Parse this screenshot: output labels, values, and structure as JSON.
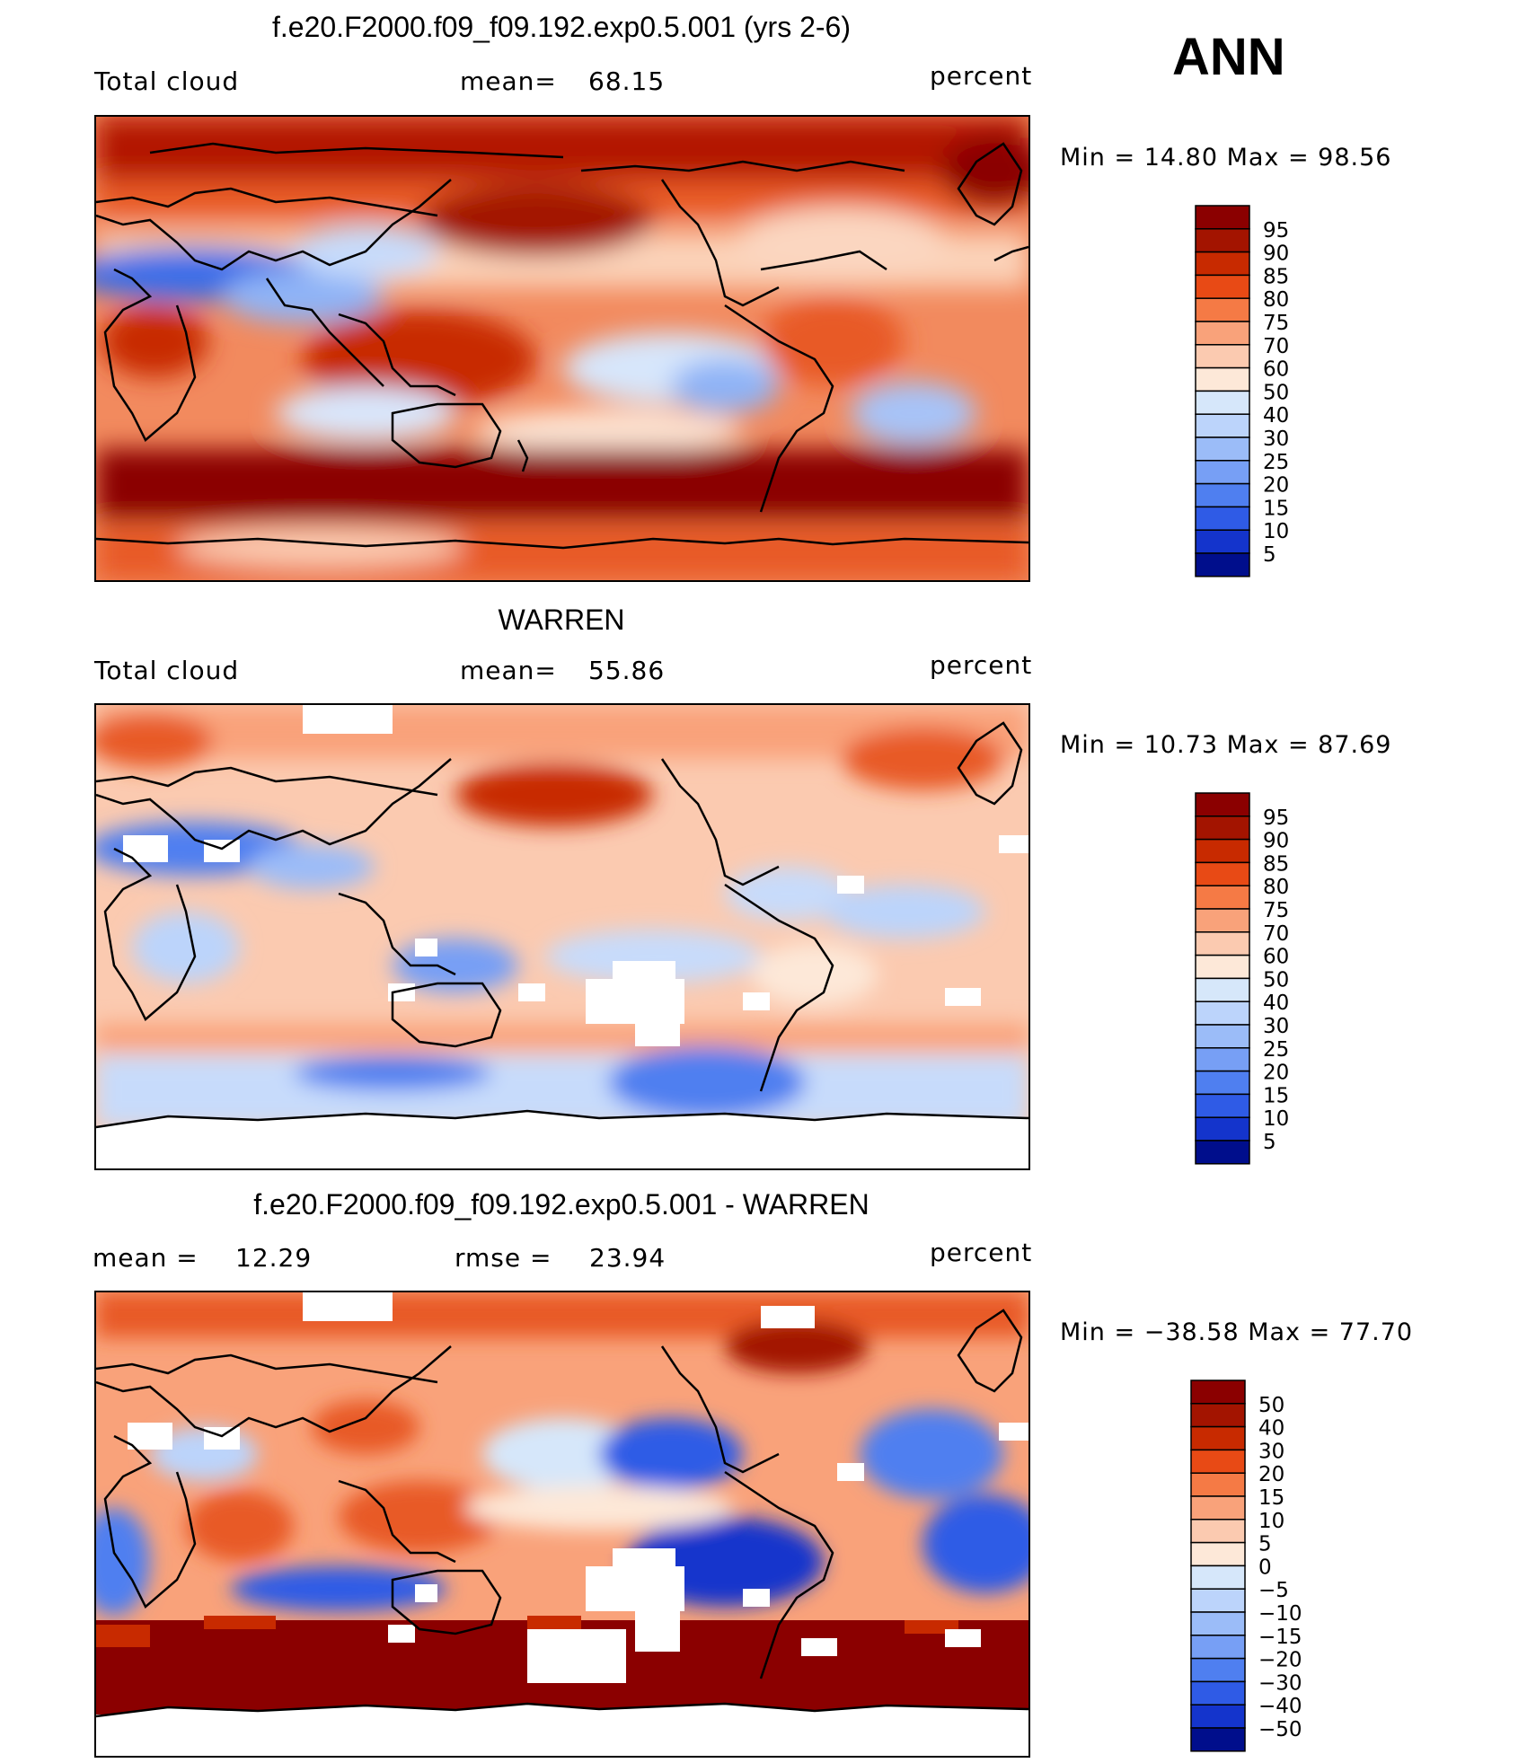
{
  "season": "ANN",
  "units": "percent",
  "panels": [
    {
      "title": "f.e20.F2000.f09_f09.192.exp0.5.001 (yrs 2-6)",
      "field": "Total cloud",
      "stat1_label": "mean=",
      "stat1_value": "68.15",
      "units": "percent",
      "min_max": "Min  =   14.80  Max  =   98.56"
    },
    {
      "title": "WARREN",
      "field": "Total cloud",
      "stat1_label": "mean=",
      "stat1_value": "55.86",
      "units": "percent",
      "min_max": "Min  =   10.73  Max  =   87.69"
    },
    {
      "title": "f.e20.F2000.f09_f09.192.exp0.5.001 - WARREN",
      "stat1_label": "mean  =",
      "stat1_value": "12.29",
      "stat2_label": "rmse  =",
      "stat2_value": "23.94",
      "units": "percent",
      "min_max": "Min  = −38.58  Max  =   77.70"
    }
  ],
  "colorbars": [
    {
      "labels": [
        "95",
        "90",
        "85",
        "80",
        "75",
        "70",
        "60",
        "50",
        "40",
        "30",
        "25",
        "20",
        "15",
        "10",
        "5"
      ],
      "colors": [
        "#8b0000",
        "#a31400",
        "#c82a00",
        "#e84a15",
        "#f57a45",
        "#f9a27a",
        "#fbcab0",
        "#fde8d8",
        "#d6e7fa",
        "#bcd4fb",
        "#9bbcf8",
        "#779ff5",
        "#4f7ff0",
        "#2f5be6",
        "#1434cc",
        "#000e8c"
      ]
    },
    {
      "labels": [
        "95",
        "90",
        "85",
        "80",
        "75",
        "70",
        "60",
        "50",
        "40",
        "30",
        "25",
        "20",
        "15",
        "10",
        "5"
      ],
      "colors": [
        "#8b0000",
        "#a31400",
        "#c82a00",
        "#e84a15",
        "#f57a45",
        "#f9a27a",
        "#fbcab0",
        "#fde8d8",
        "#d6e7fa",
        "#bcd4fb",
        "#9bbcf8",
        "#779ff5",
        "#4f7ff0",
        "#2f5be6",
        "#1434cc",
        "#000e8c"
      ]
    },
    {
      "labels": [
        "50",
        "40",
        "30",
        "20",
        "15",
        "10",
        "5",
        "0",
        "−5",
        "−10",
        "−15",
        "−20",
        "−30",
        "−40",
        "−50"
      ],
      "colors": [
        "#8b0000",
        "#a31400",
        "#c82a00",
        "#e84a15",
        "#f57a45",
        "#f9a27a",
        "#fbcab0",
        "#fde8d8",
        "#d6e7fa",
        "#bcd4fb",
        "#9bbcf8",
        "#779ff5",
        "#4f7ff0",
        "#2f5be6",
        "#1434cc",
        "#000e8c"
      ]
    }
  ],
  "chart_data": [
    {
      "type": "heatmap",
      "title": "f.e20.F2000.f09_f09.192.exp0.5.001 (yrs 2-6)",
      "variable": "Total cloud",
      "units": "percent",
      "mean": 68.15,
      "min": 14.8,
      "max": 98.56,
      "contour_levels": [
        5,
        10,
        15,
        20,
        25,
        30,
        40,
        50,
        60,
        70,
        75,
        80,
        85,
        90,
        95
      ]
    },
    {
      "type": "heatmap",
      "title": "WARREN",
      "variable": "Total cloud",
      "units": "percent",
      "mean": 55.86,
      "min": 10.73,
      "max": 87.69,
      "contour_levels": [
        5,
        10,
        15,
        20,
        25,
        30,
        40,
        50,
        60,
        70,
        75,
        80,
        85,
        90,
        95
      ]
    },
    {
      "type": "heatmap",
      "title": "f.e20.F2000.f09_f09.192.exp0.5.001 - WARREN",
      "units": "percent",
      "mean": 12.29,
      "rmse": 23.94,
      "min": -38.58,
      "max": 77.7,
      "contour_levels": [
        -50,
        -40,
        -30,
        -20,
        -15,
        -10,
        -5,
        0,
        5,
        10,
        15,
        20,
        30,
        40,
        50
      ]
    }
  ]
}
